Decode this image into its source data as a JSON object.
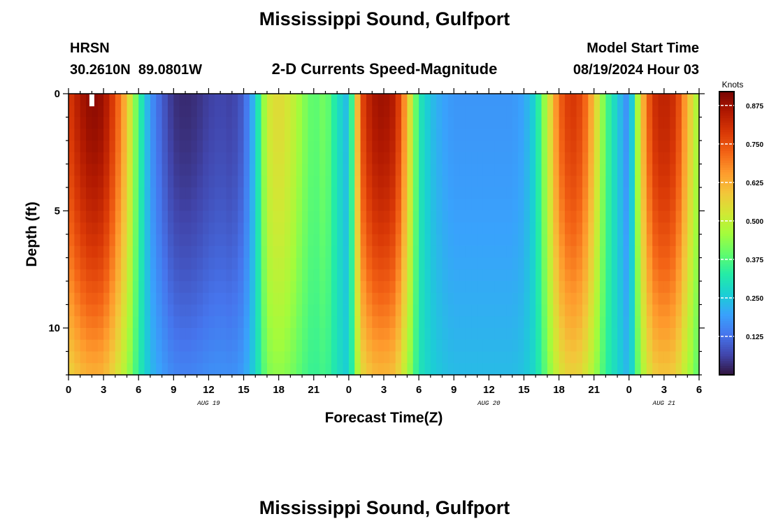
{
  "header": {
    "title": "Mississippi Sound, Gulfport",
    "station_id": "HRSN",
    "coordinates": "30.2610N  89.0801W",
    "subtitle": "2-D Currents Speed-Magnitude",
    "model_start_label": "Model Start Time",
    "model_start_value": "08/19/2024 Hour 03"
  },
  "footer": {
    "repeated_title": "Mississippi Sound, Gulfport"
  },
  "colors": {
    "colormap": [
      "#30123b",
      "#4145ab",
      "#4675ed",
      "#39a2fc",
      "#1bcfd4",
      "#24eca6",
      "#61fc6c",
      "#a4fc3b",
      "#d1e834",
      "#f3c63a",
      "#fe9b2d",
      "#f36315",
      "#d93806",
      "#b11901",
      "#7a0402"
    ],
    "marker": "#ffffff"
  },
  "chart_data": {
    "type": "heatmap",
    "xlabel": "Forecast Time(Z)",
    "ylabel": "Depth (ft)",
    "colorbar_label": "Knots",
    "x_range_hours": [
      0,
      54
    ],
    "y_range_ft": [
      0,
      12
    ],
    "y_inverted": true,
    "x_ticks": [
      {
        "h": 0,
        "label": "0"
      },
      {
        "h": 3,
        "label": "3"
      },
      {
        "h": 6,
        "label": "6"
      },
      {
        "h": 9,
        "label": "9"
      },
      {
        "h": 12,
        "label": "12"
      },
      {
        "h": 15,
        "label": "15"
      },
      {
        "h": 18,
        "label": "18"
      },
      {
        "h": 21,
        "label": "21"
      },
      {
        "h": 24,
        "label": "0"
      },
      {
        "h": 27,
        "label": "3"
      },
      {
        "h": 30,
        "label": "6"
      },
      {
        "h": 33,
        "label": "9"
      },
      {
        "h": 36,
        "label": "12"
      },
      {
        "h": 39,
        "label": "15"
      },
      {
        "h": 42,
        "label": "18"
      },
      {
        "h": 45,
        "label": "21"
      },
      {
        "h": 48,
        "label": "0"
      },
      {
        "h": 51,
        "label": "3"
      },
      {
        "h": 54,
        "label": "6"
      }
    ],
    "date_labels": [
      {
        "h": 12,
        "label": "AUG 19"
      },
      {
        "h": 36,
        "label": "AUG 20"
      },
      {
        "h": 51,
        "label": "AUG 21"
      }
    ],
    "y_ticks": [
      {
        "v": 0,
        "label": "0"
      },
      {
        "v": 5,
        "label": "5"
      },
      {
        "v": 10,
        "label": "10"
      }
    ],
    "colorbar_range": [
      0.0,
      0.92
    ],
    "colorbar_ticks": [
      {
        "v": 0.125,
        "label": "0.125"
      },
      {
        "v": 0.25,
        "label": "0.250"
      },
      {
        "v": 0.375,
        "label": "0.375"
      },
      {
        "v": 0.5,
        "label": "0.500"
      },
      {
        "v": 0.625,
        "label": "0.625"
      },
      {
        "v": 0.75,
        "label": "0.750"
      },
      {
        "v": 0.875,
        "label": "0.875"
      }
    ],
    "model_start_marker_hour": 2,
    "speed_profile": {
      "hours": [
        0,
        1,
        2,
        3,
        4,
        5,
        6,
        7,
        8,
        9,
        10,
        11,
        12,
        13,
        14,
        15,
        16,
        17,
        18,
        19,
        20,
        21,
        22,
        23,
        24,
        25,
        26,
        27,
        28,
        29,
        30,
        31,
        32,
        33,
        34,
        35,
        36,
        37,
        38,
        39,
        40,
        41,
        42,
        43,
        44,
        45,
        46,
        47,
        48,
        49,
        50,
        51,
        52,
        53,
        54
      ],
      "surface_knots": [
        0.78,
        0.86,
        0.9,
        0.88,
        0.76,
        0.6,
        0.36,
        0.18,
        0.1,
        0.04,
        0.03,
        0.04,
        0.06,
        0.07,
        0.06,
        0.1,
        0.25,
        0.52,
        0.56,
        0.52,
        0.44,
        0.38,
        0.42,
        0.3,
        0.22,
        0.75,
        0.86,
        0.88,
        0.84,
        0.62,
        0.32,
        0.24,
        0.2,
        0.18,
        0.18,
        0.18,
        0.18,
        0.18,
        0.18,
        0.2,
        0.28,
        0.5,
        0.72,
        0.8,
        0.76,
        0.6,
        0.38,
        0.26,
        0.15,
        0.58,
        0.8,
        0.84,
        0.8,
        0.62,
        0.44
      ],
      "depth_attenuation_at_bottom": 0.55
    }
  }
}
